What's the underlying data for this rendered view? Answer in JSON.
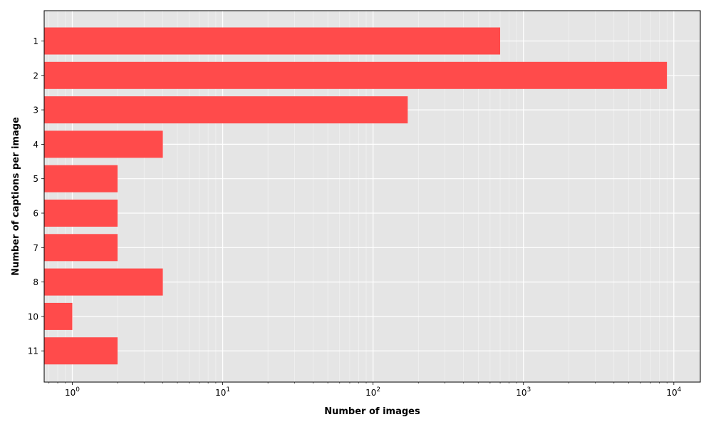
{
  "chart_data": {
    "type": "bar",
    "orientation": "horizontal",
    "x_scale": "log",
    "categories": [
      "1",
      "2",
      "3",
      "4",
      "5",
      "6",
      "7",
      "8",
      "10",
      "11"
    ],
    "values": [
      700,
      9000,
      170,
      4,
      2,
      2,
      2,
      4,
      1,
      2
    ],
    "xlabel": "Number of images",
    "ylabel": "Number of captions per image",
    "xlim": [
      0.65,
      15000
    ],
    "x_major_ticks": [
      {
        "value": 1,
        "base": "10",
        "exp": "0"
      },
      {
        "value": 10,
        "base": "10",
        "exp": "1"
      },
      {
        "value": 100,
        "base": "10",
        "exp": "2"
      },
      {
        "value": 1000,
        "base": "10",
        "exp": "3"
      },
      {
        "value": 10000,
        "base": "10",
        "exp": "4"
      }
    ],
    "grid": true,
    "colors": {
      "bar": "#ff4b4b",
      "plot_background": "#e5e5e5",
      "grid": "#ffffff",
      "frame": "#000000"
    }
  }
}
